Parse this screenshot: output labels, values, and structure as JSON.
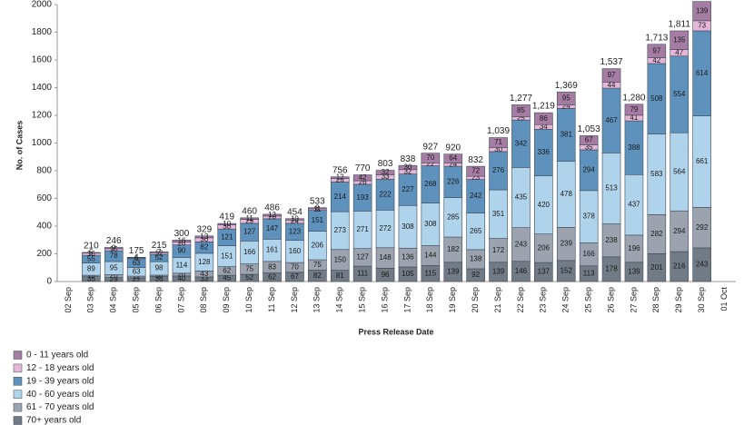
{
  "chart_data": {
    "type": "stacked_bar",
    "x_label": "Press Release Date",
    "y_label": "No. of Cases",
    "categories": [
      "02 Sep",
      "03 Sep",
      "04 Sep",
      "05 Sep",
      "06 Sep",
      "07 Sep",
      "08 Sep",
      "09 Sep",
      "10 Sep",
      "11 Sep",
      "12 Sep",
      "13 Sep",
      "14 Sep",
      "15 Sep",
      "16 Sep",
      "17 Sep",
      "18 Sep",
      "19 Sep",
      "20 Sep",
      "21 Sep",
      "22 Sep",
      "23 Sep",
      "24 Sep",
      "25 Sep",
      "26 Sep",
      "27 Sep",
      "28 Sep",
      "29 Sep",
      "30 Sep",
      "01 Oct"
    ],
    "series": [
      {
        "name": "0 - 11 years old",
        "color": "#a57ca4",
        "values": [
          null,
          5,
          9,
          4,
          7,
          16,
          13,
          10,
          11,
          13,
          10,
          8,
          12,
          42,
          32,
          30,
          70,
          64,
          72,
          71,
          85,
          86,
          95,
          67,
          97,
          79,
          97,
          135,
          139,
          null
        ]
      },
      {
        "name": "12 - 18 years old",
        "color": "#e6b6d6",
        "values": [
          null,
          16,
          15,
          6,
          12,
          20,
          30,
          30,
          29,
          20,
          24,
          11,
          26,
          26,
          33,
          32,
          22,
          24,
          23,
          30,
          25,
          34,
          24,
          35,
          44,
          41,
          42,
          47,
          73,
          null
        ]
      },
      {
        "name": "19 - 39 years old",
        "color": "#5e92bd",
        "values": [
          null,
          55,
          78,
          63,
          52,
          90,
          82,
          121,
          127,
          147,
          123,
          151,
          214,
          193,
          222,
          227,
          268,
          226,
          242,
          276,
          342,
          336,
          381,
          294,
          467,
          388,
          508,
          554,
          614,
          null
        ]
      },
      {
        "name": "40 - 60 years old",
        "color": "#b0d3ec",
        "values": [
          null,
          89,
          95,
          63,
          98,
          114,
          128,
          151,
          166,
          161,
          160,
          206,
          273,
          271,
          272,
          308,
          308,
          285,
          265,
          351,
          435,
          420,
          478,
          378,
          513,
          437,
          583,
          564,
          661,
          null
        ]
      },
      {
        "name": "61 - 70 years old",
        "color": "#9ca3ae",
        "values": [
          null,
          10,
          20,
          12,
          10,
          20,
          43,
          62,
          75,
          83,
          70,
          75,
          150,
          127,
          148,
          136,
          144,
          182,
          138,
          172,
          243,
          206,
          239,
          166,
          238,
          196,
          282,
          294,
          292,
          null
        ]
      },
      {
        "name": "70+ years old",
        "color": "#717a85",
        "values": [
          null,
          35,
          29,
          27,
          36,
          40,
          33,
          45,
          52,
          62,
          67,
          82,
          81,
          111,
          96,
          105,
          115,
          139,
          92,
          139,
          146,
          137,
          152,
          113,
          178,
          139,
          201,
          216,
          243,
          null
        ]
      }
    ],
    "total_labels": [
      null,
      "210",
      "246",
      "175",
      "215",
      "300",
      "329",
      "419",
      "460",
      "486",
      "454",
      "533",
      "756",
      "770",
      "803",
      "838",
      "927",
      "920",
      "832",
      "1,039",
      "1,277",
      "1,219",
      "1,369",
      "1,053",
      "1,537",
      "1,280",
      "1,713",
      "1,811",
      null,
      null
    ],
    "ylim": [
      0,
      2000
    ],
    "yticks": [
      0,
      200,
      400,
      600,
      800,
      1000,
      1200,
      1400,
      1600,
      1800,
      2000
    ]
  }
}
